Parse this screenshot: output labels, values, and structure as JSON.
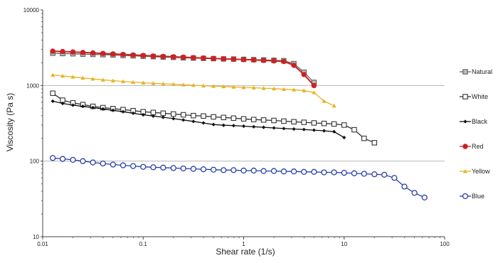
{
  "chart_data": {
    "type": "line",
    "xlabel": "Shear rate (1/s)",
    "ylabel": "Viscosity  (Pa s)",
    "xscale": "log",
    "yscale": "log",
    "xlim": [
      0.01,
      100
    ],
    "ylim": [
      10,
      10000
    ],
    "x_ticks": [
      0.01,
      0.1,
      1,
      10,
      100
    ],
    "x_tick_labels": [
      "0.01",
      "0.1",
      "1",
      "10",
      "100"
    ],
    "y_ticks": [
      10,
      100,
      1000,
      10000
    ],
    "y_tick_labels": [
      "10",
      "100",
      "1000",
      "10000"
    ],
    "grid": "horizontal major gridlines at 10, 100, 1000",
    "legend_position": "right",
    "series": [
      {
        "name": "Natural",
        "color": "#666666",
        "marker": "square-filled-gray",
        "x": [
          0.0126,
          0.0158,
          0.02,
          0.0251,
          0.0316,
          0.0398,
          0.0501,
          0.0631,
          0.0794,
          0.1,
          0.126,
          0.158,
          0.2,
          0.251,
          0.316,
          0.398,
          0.501,
          0.631,
          0.794,
          1,
          1.26,
          1.58,
          2,
          2.51,
          3.16,
          3.98,
          5.01
        ],
        "y": [
          2680,
          2650,
          2630,
          2600,
          2580,
          2560,
          2540,
          2500,
          2470,
          2440,
          2410,
          2380,
          2360,
          2330,
          2310,
          2290,
          2270,
          2250,
          2240,
          2220,
          2200,
          2180,
          2160,
          2130,
          1950,
          1500,
          1100
        ]
      },
      {
        "name": "White",
        "color": "#333333",
        "marker": "square-open",
        "x": [
          0.0126,
          0.0158,
          0.02,
          0.0251,
          0.0316,
          0.0398,
          0.0501,
          0.0631,
          0.0794,
          0.1,
          0.126,
          0.158,
          0.2,
          0.251,
          0.316,
          0.398,
          0.501,
          0.631,
          0.794,
          1,
          1.26,
          1.58,
          2,
          2.51,
          3.16,
          3.98,
          5.01,
          6.31,
          7.94,
          10,
          12.6,
          15.8,
          20
        ],
        "y": [
          790,
          640,
          590,
          560,
          530,
          510,
          495,
          480,
          465,
          450,
          440,
          430,
          420,
          410,
          400,
          395,
          385,
          378,
          370,
          362,
          355,
          350,
          345,
          338,
          332,
          326,
          320,
          315,
          310,
          300,
          260,
          200,
          175
        ]
      },
      {
        "name": "Black",
        "color": "#111111",
        "marker": "diamond-filled",
        "x": [
          0.0126,
          0.0158,
          0.02,
          0.0251,
          0.0316,
          0.0398,
          0.0501,
          0.0631,
          0.0794,
          0.1,
          0.126,
          0.158,
          0.2,
          0.251,
          0.316,
          0.398,
          0.501,
          0.631,
          0.794,
          1,
          1.26,
          1.58,
          2,
          2.51,
          3.16,
          3.98,
          5.01,
          6.31,
          7.94,
          10
        ],
        "y": [
          620,
          580,
          550,
          530,
          510,
          490,
          470,
          450,
          430,
          410,
          395,
          380,
          365,
          350,
          335,
          320,
          305,
          298,
          295,
          290,
          285,
          280,
          275,
          270,
          266,
          262,
          257,
          252,
          245,
          205
        ]
      },
      {
        "name": "Red",
        "color": "#cc2222",
        "marker": "circle-filled",
        "x": [
          0.0126,
          0.0158,
          0.02,
          0.0251,
          0.0316,
          0.0398,
          0.0501,
          0.0631,
          0.0794,
          0.1,
          0.126,
          0.158,
          0.2,
          0.251,
          0.316,
          0.398,
          0.501,
          0.631,
          0.794,
          1,
          1.26,
          1.58,
          2,
          2.51,
          3.16,
          3.98,
          5.01
        ],
        "y": [
          2850,
          2820,
          2780,
          2740,
          2700,
          2660,
          2620,
          2580,
          2540,
          2500,
          2460,
          2430,
          2400,
          2370,
          2340,
          2310,
          2280,
          2250,
          2230,
          2210,
          2180,
          2150,
          2120,
          2080,
          1850,
          1400,
          1000
        ]
      },
      {
        "name": "Yellow",
        "color": "#e6b422",
        "marker": "triangle-filled",
        "x": [
          0.0126,
          0.0158,
          0.02,
          0.0251,
          0.0316,
          0.0398,
          0.0501,
          0.0631,
          0.0794,
          0.1,
          0.126,
          0.158,
          0.2,
          0.251,
          0.316,
          0.398,
          0.501,
          0.631,
          0.794,
          1,
          1.26,
          1.58,
          2,
          2.51,
          3.16,
          3.98,
          5.01,
          6.31,
          7.94
        ],
        "y": [
          1380,
          1340,
          1300,
          1260,
          1225,
          1190,
          1160,
          1135,
          1110,
          1090,
          1070,
          1055,
          1040,
          1025,
          1010,
          995,
          982,
          970,
          958,
          945,
          935,
          922,
          910,
          895,
          880,
          860,
          810,
          620,
          540
        ]
      },
      {
        "name": "Blue",
        "color": "#2a3fa8",
        "marker": "circle-open",
        "x": [
          0.0126,
          0.0158,
          0.02,
          0.0251,
          0.0316,
          0.0398,
          0.0501,
          0.0631,
          0.0794,
          0.1,
          0.126,
          0.158,
          0.2,
          0.251,
          0.316,
          0.398,
          0.501,
          0.631,
          0.794,
          1,
          1.26,
          1.58,
          2,
          2.51,
          3.16,
          3.98,
          5.01,
          6.31,
          7.94,
          10,
          12.6,
          15.8,
          20,
          25.1,
          31.6,
          39.8,
          50.1,
          63.1
        ],
        "y": [
          110,
          107,
          104,
          100,
          96,
          93,
          90,
          88,
          86,
          84,
          83,
          82,
          81,
          80,
          79,
          78,
          77,
          76,
          76,
          75,
          75,
          74,
          74,
          73,
          73,
          72,
          72,
          71,
          71,
          70,
          69,
          68,
          67,
          66,
          60,
          46,
          38,
          33
        ]
      }
    ]
  }
}
